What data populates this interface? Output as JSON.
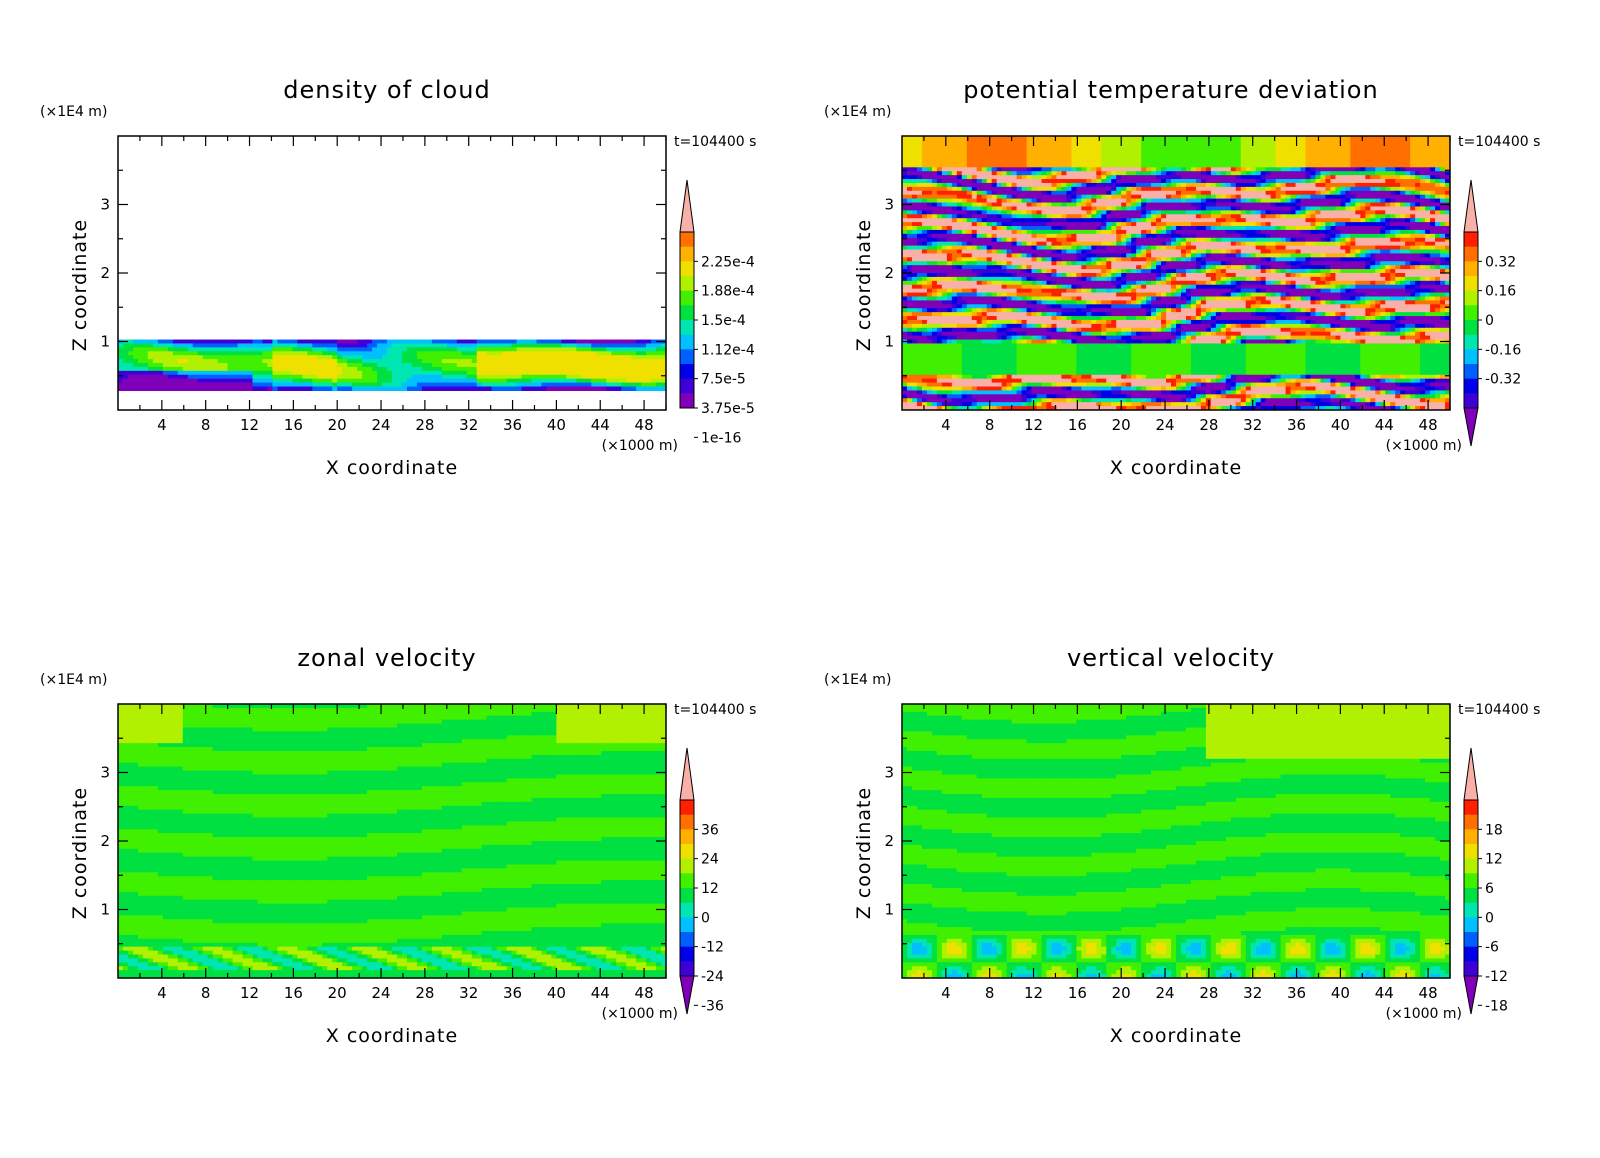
{
  "figure": {
    "colormap": [
      "#7f00b8",
      "#3f00d8",
      "#0000e8",
      "#0060ff",
      "#00c0ff",
      "#00e6b0",
      "#00e040",
      "#40f000",
      "#b0f000",
      "#f0e000",
      "#ffb000",
      "#ff7000",
      "#ff2000",
      "#f8b0a8"
    ],
    "background": "#ffffff"
  },
  "chart_data": [
    {
      "type": "heatmap",
      "title": "density of cloud",
      "xlabel": "X coordinate",
      "ylabel": "Z coordinate",
      "x_unit": "(×1000 m)",
      "y_unit": "(×1E4 m)",
      "time_label": "t=104400 s",
      "x_ticks": [
        4,
        8,
        12,
        16,
        20,
        24,
        28,
        32,
        36,
        40,
        44,
        48
      ],
      "y_ticks": [
        1,
        2,
        3
      ],
      "xlim": [
        0,
        50
      ],
      "ylim": [
        0,
        4
      ],
      "colorbar_labels": [
        "2.25e-4",
        "1.88e-4",
        "1.5e-4",
        "1.12e-4",
        "7.5e-5",
        "3.75e-5",
        "1e-16"
      ],
      "pattern": "cloud"
    },
    {
      "type": "heatmap",
      "title": "potential temperature deviation",
      "xlabel": "X coordinate",
      "ylabel": "Z coordinate",
      "x_unit": "(×1000 m)",
      "y_unit": "(×1E4 m)",
      "time_label": "t=104400 s",
      "x_ticks": [
        4,
        8,
        12,
        16,
        20,
        24,
        28,
        32,
        36,
        40,
        44,
        48
      ],
      "y_ticks": [
        1,
        2,
        3
      ],
      "xlim": [
        0,
        50
      ],
      "ylim": [
        0,
        4
      ],
      "colorbar_labels": [
        "0.32",
        "0.16",
        "0",
        "-0.16",
        "-0.32"
      ],
      "pattern": "theta"
    },
    {
      "type": "heatmap",
      "title": "zonal velocity",
      "xlabel": "X coordinate",
      "ylabel": "Z coordinate",
      "x_unit": "(×1000 m)",
      "y_unit": "(×1E4 m)",
      "time_label": "t=104400 s",
      "x_ticks": [
        4,
        8,
        12,
        16,
        20,
        24,
        28,
        32,
        36,
        40,
        44,
        48
      ],
      "y_ticks": [
        1,
        2,
        3
      ],
      "xlim": [
        0,
        50
      ],
      "ylim": [
        0,
        4
      ],
      "colorbar_labels": [
        "36",
        "24",
        "12",
        "0",
        "-12",
        "-24",
        "-36"
      ],
      "pattern": "zonal"
    },
    {
      "type": "heatmap",
      "title": "vertical velocity",
      "xlabel": "X coordinate",
      "ylabel": "Z coordinate",
      "x_unit": "(×1000 m)",
      "y_unit": "(×1E4 m)",
      "time_label": "t=104400 s",
      "x_ticks": [
        4,
        8,
        12,
        16,
        20,
        24,
        28,
        32,
        36,
        40,
        44,
        48
      ],
      "y_ticks": [
        1,
        2,
        3
      ],
      "xlim": [
        0,
        50
      ],
      "ylim": [
        0,
        4
      ],
      "colorbar_labels": [
        "18",
        "12",
        "6",
        "0",
        "-6",
        "-12",
        "-18"
      ],
      "pattern": "vertical"
    }
  ]
}
